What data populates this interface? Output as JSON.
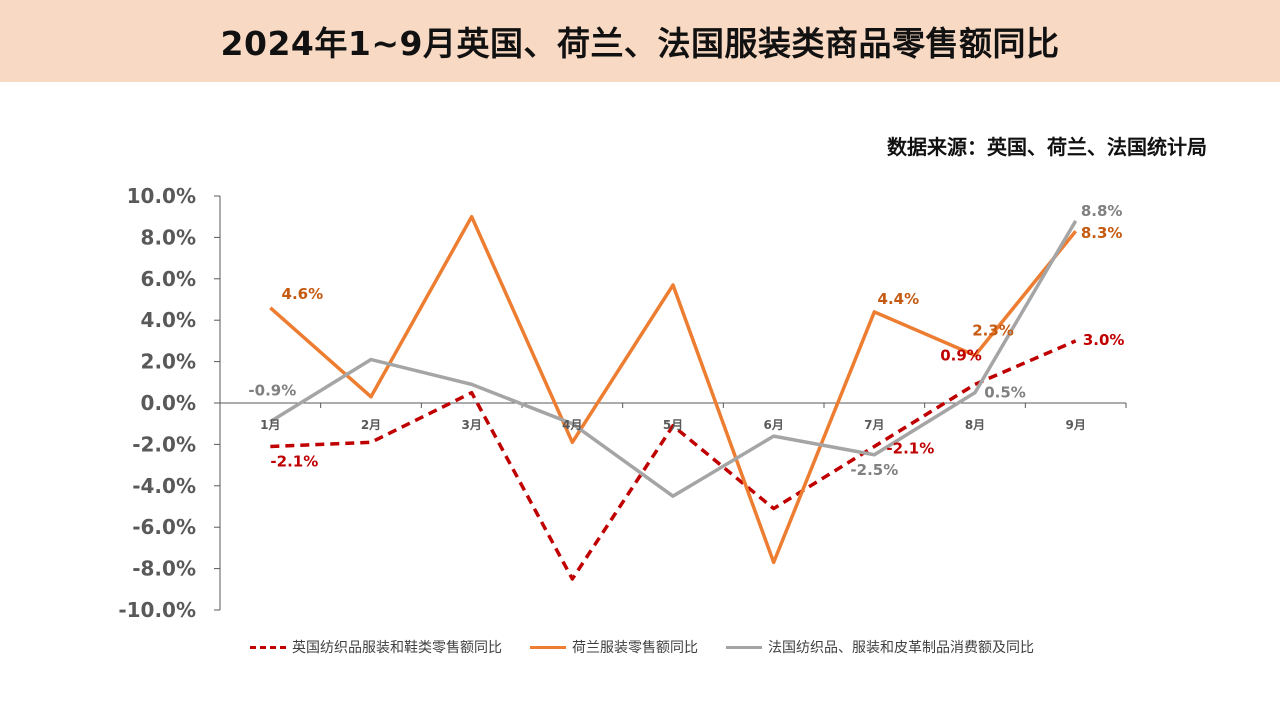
{
  "header": {
    "title": "2024年1~9月英国、荷兰、法国服装类商品零售额同比",
    "source": "数据来源：英国、荷兰、法国统计局"
  },
  "colors": {
    "uk": "#c00000",
    "nl": "#ed7d31",
    "fr": "#a5a5a5",
    "title_bg": "#f8d9c3"
  },
  "chart_data": {
    "type": "line",
    "categories": [
      "1月",
      "2月",
      "3月",
      "4月",
      "5月",
      "6月",
      "7月",
      "8月",
      "9月"
    ],
    "ylim": [
      -10,
      10
    ],
    "y_ticks": [
      "10.0%",
      "8.0%",
      "6.0%",
      "4.0%",
      "2.0%",
      "0.0%",
      "-2.0%",
      "-4.0%",
      "-6.0%",
      "-8.0%",
      "-10.0%"
    ],
    "grid": false,
    "legend_position": "bottom",
    "series": [
      {
        "name": "英国纺织品服装和鞋类零售额同比",
        "key": "uk",
        "style": "dashed",
        "values": [
          -2.1,
          -1.9,
          0.5,
          -8.5,
          -1.1,
          -5.1,
          -2.1,
          0.9,
          3.0
        ],
        "labels": [
          {
            "index": 0,
            "text": "-2.1%"
          },
          {
            "index": 6,
            "text": "-2.1%"
          },
          {
            "index": 7,
            "text": "0.9%"
          },
          {
            "index": 8,
            "text": "3.0%"
          }
        ]
      },
      {
        "name": "荷兰服装零售额同比",
        "key": "nl",
        "style": "solid",
        "values": [
          4.6,
          0.3,
          9.0,
          -1.9,
          5.7,
          -7.7,
          4.4,
          2.3,
          8.3
        ],
        "labels": [
          {
            "index": 0,
            "text": "4.6%"
          },
          {
            "index": 6,
            "text": "4.4%"
          },
          {
            "index": 7,
            "text": "2.3%"
          },
          {
            "index": 8,
            "text": "8.3%"
          }
        ]
      },
      {
        "name": "法国纺织品、服装和皮革制品消费额及同比",
        "key": "fr",
        "style": "solid",
        "values": [
          -0.9,
          2.1,
          0.9,
          -1.0,
          -4.5,
          -1.6,
          -2.5,
          0.5,
          8.8
        ],
        "labels": [
          {
            "index": 0,
            "text": "-0.9%"
          },
          {
            "index": 6,
            "text": "-2.5%"
          },
          {
            "index": 7,
            "text": "0.5%"
          },
          {
            "index": 8,
            "text": "8.8%"
          }
        ]
      }
    ]
  }
}
